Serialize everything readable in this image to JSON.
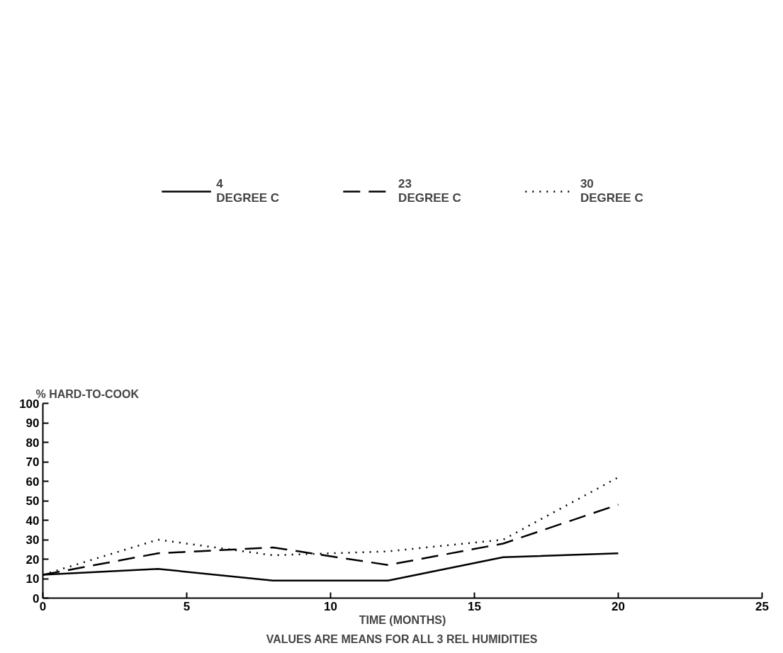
{
  "chart_data": {
    "type": "line",
    "ylabel": "% HARD-TO-COOK",
    "xlabel": "TIME (MONTHS)",
    "annotations": [
      "VALUES ARE MEANS FOR ALL 3 REL HUMIDITIES"
    ],
    "x": [
      0,
      4,
      8,
      12,
      16,
      20
    ],
    "series": [
      {
        "name": "4\nDEGREE C",
        "color": "#000000",
        "line_style": "solid",
        "values": [
          12,
          15,
          9,
          9,
          21,
          23
        ]
      },
      {
        "name": "23\nDEGREE C",
        "color": "#000000",
        "line_style": "dashed",
        "values": [
          12,
          23,
          26,
          17,
          28,
          48
        ]
      },
      {
        "name": "30\nDEGREE C",
        "color": "#000000",
        "line_style": "dotted",
        "values": [
          12,
          30,
          22,
          24,
          30,
          62
        ]
      }
    ],
    "xlim": [
      0,
      25
    ],
    "xticks": [
      0,
      5,
      10,
      15,
      20,
      25
    ],
    "ylim": [
      0,
      100
    ],
    "yticks": [
      0,
      10,
      20,
      30,
      40,
      50,
      60,
      70,
      80,
      90,
      100
    ],
    "grid": false,
    "legend": "top",
    "marker": "none"
  }
}
